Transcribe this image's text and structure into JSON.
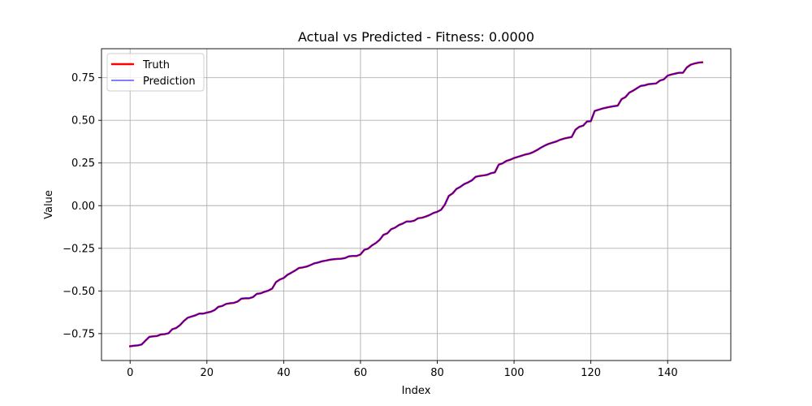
{
  "chart_data": {
    "type": "line",
    "title": "Actual vs Predicted - Fitness: 0.0000",
    "xlabel": "Index",
    "ylabel": "Value",
    "xlim": [
      -7.45,
      156.45
    ],
    "ylim": [
      -0.9077,
      0.9197
    ],
    "xticks": [
      0,
      20,
      40,
      60,
      80,
      100,
      120,
      140
    ],
    "xtick_labels": [
      "0",
      "20",
      "40",
      "60",
      "80",
      "100",
      "120",
      "140"
    ],
    "yticks": [
      -0.75,
      -0.5,
      -0.25,
      0.0,
      0.25,
      0.5,
      0.75
    ],
    "ytick_labels": [
      "−0.75",
      "−0.50",
      "−0.25",
      "0.00",
      "0.25",
      "0.50",
      "0.75"
    ],
    "grid": true,
    "legend_position": "top-left",
    "series": [
      {
        "name": "Truth",
        "color": "#ff0000",
        "values": [
          -0.824,
          -0.821,
          -0.819,
          -0.814,
          -0.791,
          -0.769,
          -0.766,
          -0.764,
          -0.755,
          -0.753,
          -0.748,
          -0.724,
          -0.717,
          -0.7,
          -0.676,
          -0.657,
          -0.65,
          -0.643,
          -0.633,
          -0.633,
          -0.627,
          -0.622,
          -0.612,
          -0.593,
          -0.588,
          -0.576,
          -0.572,
          -0.57,
          -0.562,
          -0.545,
          -0.543,
          -0.543,
          -0.536,
          -0.517,
          -0.514,
          -0.505,
          -0.498,
          -0.486,
          -0.448,
          -0.433,
          -0.424,
          -0.405,
          -0.393,
          -0.38,
          -0.365,
          -0.362,
          -0.357,
          -0.348,
          -0.338,
          -0.333,
          -0.326,
          -0.322,
          -0.317,
          -0.314,
          -0.312,
          -0.311,
          -0.307,
          -0.297,
          -0.295,
          -0.295,
          -0.286,
          -0.259,
          -0.252,
          -0.233,
          -0.219,
          -0.2,
          -0.171,
          -0.162,
          -0.138,
          -0.129,
          -0.114,
          -0.105,
          -0.093,
          -0.093,
          -0.088,
          -0.074,
          -0.071,
          -0.064,
          -0.055,
          -0.043,
          -0.036,
          -0.024,
          0.007,
          0.057,
          0.072,
          0.098,
          0.11,
          0.126,
          0.136,
          0.148,
          0.169,
          0.174,
          0.177,
          0.181,
          0.19,
          0.195,
          0.24,
          0.248,
          0.262,
          0.269,
          0.279,
          0.286,
          0.293,
          0.3,
          0.305,
          0.314,
          0.326,
          0.34,
          0.352,
          0.362,
          0.369,
          0.376,
          0.386,
          0.393,
          0.398,
          0.402,
          0.445,
          0.462,
          0.469,
          0.493,
          0.495,
          0.555,
          0.562,
          0.569,
          0.574,
          0.579,
          0.583,
          0.586,
          0.624,
          0.636,
          0.662,
          0.674,
          0.688,
          0.702,
          0.705,
          0.712,
          0.714,
          0.716,
          0.733,
          0.74,
          0.762,
          0.769,
          0.774,
          0.779,
          0.779,
          0.81,
          0.826,
          0.833,
          0.838,
          0.84
        ]
      },
      {
        "name": "Prediction",
        "color": "#0000ff",
        "values": [
          -0.824,
          -0.821,
          -0.819,
          -0.814,
          -0.791,
          -0.769,
          -0.766,
          -0.764,
          -0.755,
          -0.753,
          -0.748,
          -0.724,
          -0.717,
          -0.7,
          -0.676,
          -0.657,
          -0.65,
          -0.643,
          -0.633,
          -0.633,
          -0.627,
          -0.622,
          -0.612,
          -0.593,
          -0.588,
          -0.576,
          -0.572,
          -0.57,
          -0.562,
          -0.545,
          -0.543,
          -0.543,
          -0.536,
          -0.517,
          -0.514,
          -0.505,
          -0.498,
          -0.486,
          -0.448,
          -0.433,
          -0.424,
          -0.405,
          -0.393,
          -0.38,
          -0.365,
          -0.362,
          -0.357,
          -0.348,
          -0.338,
          -0.333,
          -0.326,
          -0.322,
          -0.317,
          -0.314,
          -0.312,
          -0.311,
          -0.307,
          -0.297,
          -0.295,
          -0.295,
          -0.286,
          -0.259,
          -0.252,
          -0.233,
          -0.219,
          -0.2,
          -0.171,
          -0.162,
          -0.138,
          -0.129,
          -0.114,
          -0.105,
          -0.093,
          -0.093,
          -0.088,
          -0.074,
          -0.071,
          -0.064,
          -0.055,
          -0.043,
          -0.036,
          -0.024,
          0.007,
          0.057,
          0.072,
          0.098,
          0.11,
          0.126,
          0.136,
          0.148,
          0.169,
          0.174,
          0.177,
          0.181,
          0.19,
          0.195,
          0.24,
          0.248,
          0.262,
          0.269,
          0.279,
          0.286,
          0.293,
          0.3,
          0.305,
          0.314,
          0.326,
          0.34,
          0.352,
          0.362,
          0.369,
          0.376,
          0.386,
          0.393,
          0.398,
          0.402,
          0.445,
          0.462,
          0.469,
          0.493,
          0.495,
          0.555,
          0.562,
          0.569,
          0.574,
          0.579,
          0.583,
          0.586,
          0.624,
          0.636,
          0.662,
          0.674,
          0.688,
          0.702,
          0.705,
          0.712,
          0.714,
          0.716,
          0.733,
          0.74,
          0.762,
          0.769,
          0.774,
          0.779,
          0.779,
          0.81,
          0.826,
          0.833,
          0.838,
          0.84
        ]
      }
    ]
  }
}
